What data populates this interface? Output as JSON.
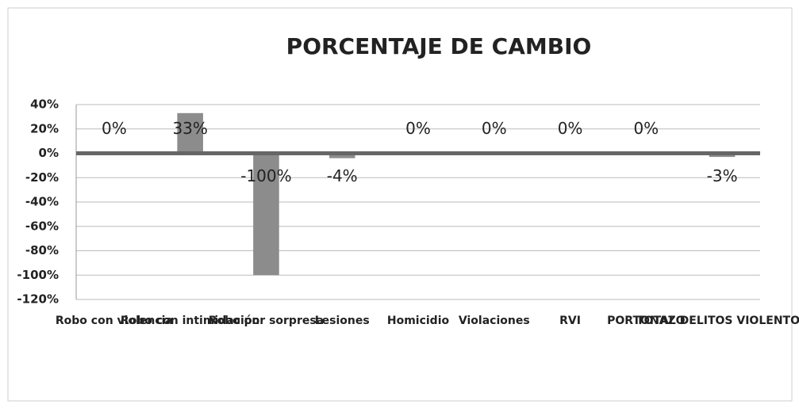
{
  "chart_data": {
    "type": "bar",
    "title": "PORCENTAJE DE CAMBIO",
    "categories": [
      "Robo con violencia",
      "Robo con intimidación",
      "Robo por sorpresa",
      "Lesiones",
      "Homicidio",
      "Violaciones",
      "RVI",
      "PORTONAZO",
      "TOTAL DELITOS VIOLENTOS"
    ],
    "values": [
      0,
      33,
      -100,
      -4,
      0,
      0,
      0,
      0,
      -3
    ],
    "value_labels": [
      "0%",
      "33%",
      "-100%",
      "-4%",
      "0%",
      "0%",
      "0%",
      "0%",
      "-3%"
    ],
    "color": "#8c8c8c",
    "ylim": [
      -120,
      40
    ],
    "yticks": [
      {
        "value": -120,
        "label": "-120%"
      },
      {
        "value": -100,
        "label": "-100%"
      },
      {
        "value": -80,
        "label": "-80%"
      },
      {
        "value": -60,
        "label": "-60%"
      },
      {
        "value": -40,
        "label": "-40%"
      },
      {
        "value": -20,
        "label": "-20%"
      },
      {
        "value": 0,
        "label": "0%"
      },
      {
        "value": 20,
        "label": "20%"
      },
      {
        "value": 40,
        "label": "40%"
      }
    ],
    "grid": true
  }
}
